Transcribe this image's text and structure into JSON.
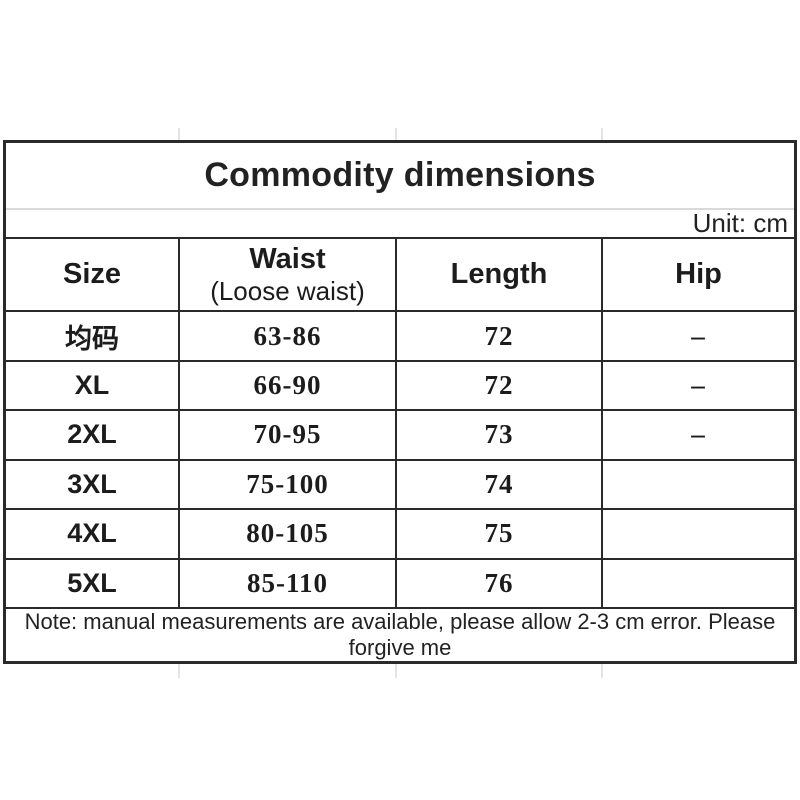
{
  "chart_data": {
    "type": "table",
    "title": "Commodity dimensions",
    "unit_label": "Unit: cm",
    "columns": [
      {
        "label": "Size",
        "sublabel": ""
      },
      {
        "label": "Waist",
        "sublabel": "(Loose waist)"
      },
      {
        "label": "Length",
        "sublabel": ""
      },
      {
        "label": "Hip",
        "sublabel": ""
      }
    ],
    "rows": [
      {
        "size": "均码",
        "waist": "63-86",
        "length": "72",
        "hip": "–"
      },
      {
        "size": "XL",
        "waist": "66-90",
        "length": "72",
        "hip": "–"
      },
      {
        "size": "2XL",
        "waist": "70-95",
        "length": "73",
        "hip": "–"
      },
      {
        "size": "3XL",
        "waist": "75-100",
        "length": "74",
        "hip": ""
      },
      {
        "size": "4XL",
        "waist": "80-105",
        "length": "75",
        "hip": ""
      },
      {
        "size": "5XL",
        "waist": "85-110",
        "length": "76",
        "hip": ""
      }
    ],
    "note": "Note: manual measurements are available, please allow 2-3 cm error. Please forgive me",
    "layout_hints": {
      "grid": "on",
      "legend": "none"
    }
  },
  "colors": {
    "border": "#2a2a2a",
    "light_divider": "#d9d9d9",
    "text": "#1c1c1c",
    "background": "#ffffff"
  }
}
